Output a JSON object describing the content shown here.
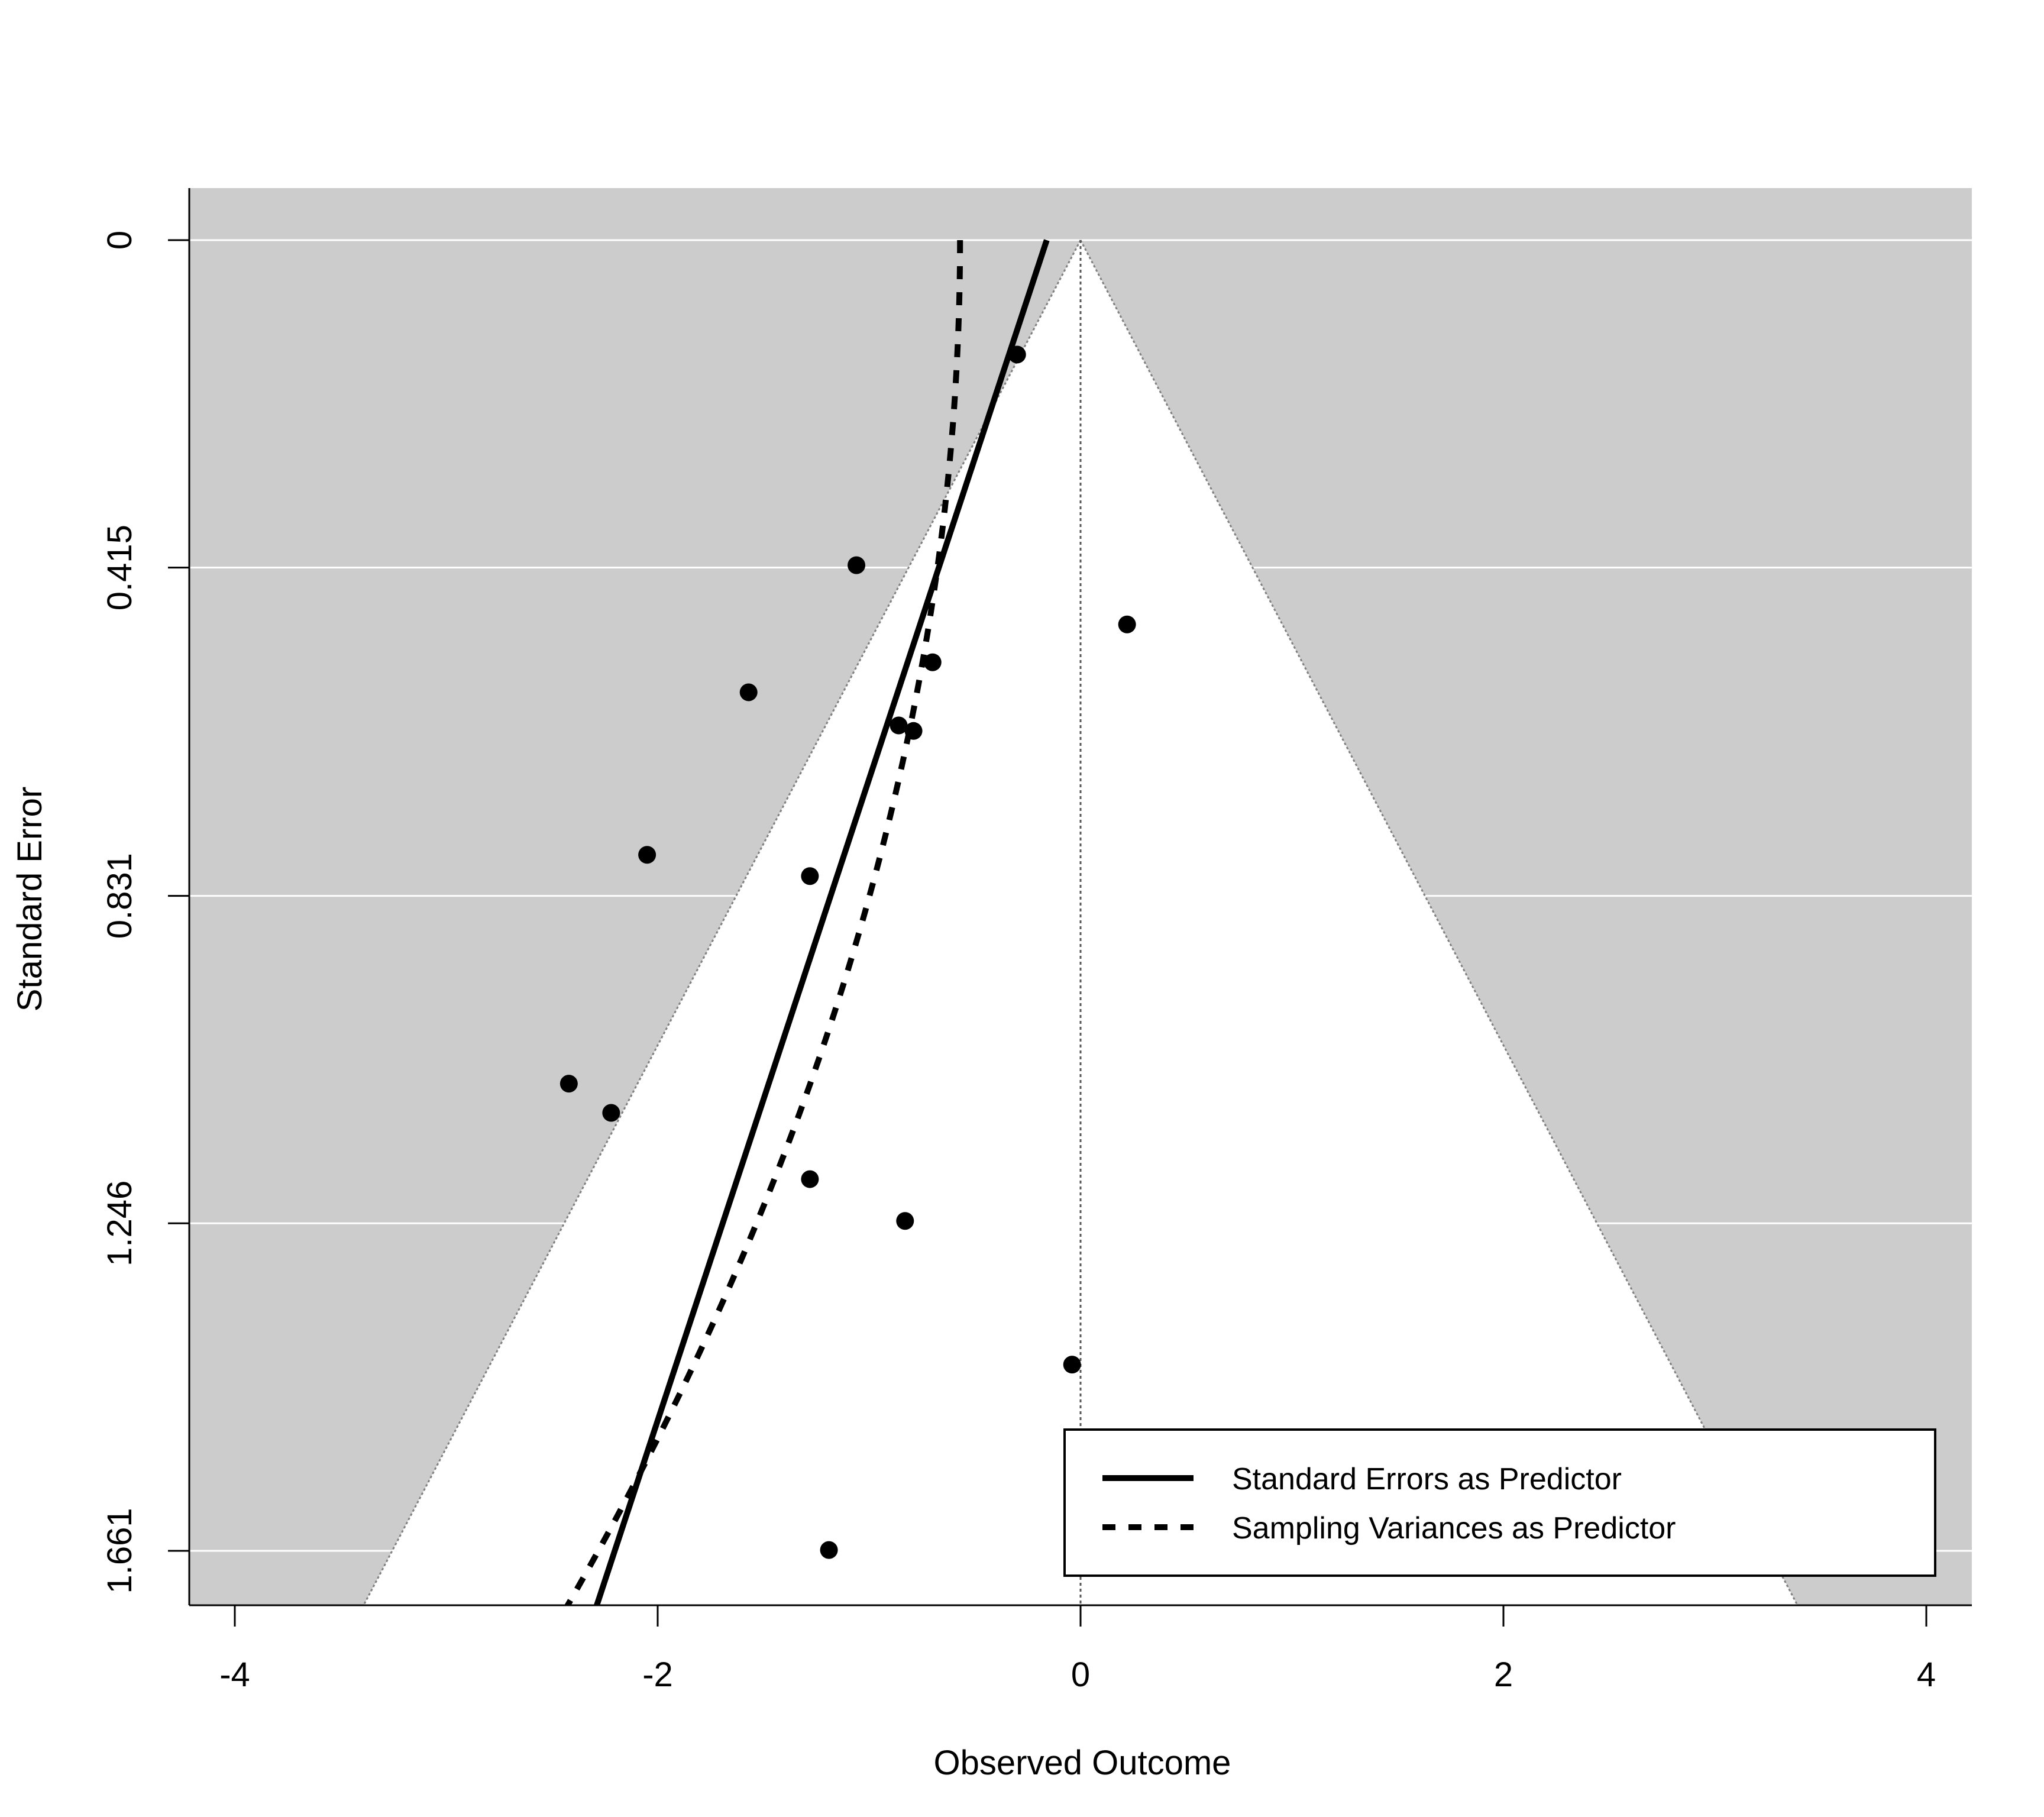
{
  "chart_data": {
    "type": "scatter",
    "subtype": "funnel-plot",
    "title": "",
    "xlabel": "Observed Outcome",
    "ylabel": "Standard Error",
    "xlim": [
      -4.22,
      4.22
    ],
    "ylim": [
      0,
      1.661
    ],
    "y_reversed": true,
    "x_ticks": [
      {
        "value": -4,
        "label": "-4"
      },
      {
        "value": -2,
        "label": "-2"
      },
      {
        "value": 0,
        "label": "0"
      },
      {
        "value": 2,
        "label": "2"
      },
      {
        "value": 4,
        "label": "4"
      }
    ],
    "y_ticks": [
      {
        "value": 0,
        "label": "0"
      },
      {
        "value": 0.415,
        "label": "0.415"
      },
      {
        "value": 0.831,
        "label": "0.831"
      },
      {
        "value": 1.246,
        "label": "1.246"
      },
      {
        "value": 1.661,
        "label": "1.661"
      }
    ],
    "grid": "horizontal",
    "funnel": {
      "center": 0,
      "z": 1.96,
      "inner_fill": "#ffffff",
      "outer_fill": "#cccccc",
      "boundary_color": "#808080"
    },
    "points": [
      {
        "x": -0.3,
        "y": 0.145
      },
      {
        "x": -1.06,
        "y": 0.412
      },
      {
        "x": 0.22,
        "y": 0.487
      },
      {
        "x": -0.7,
        "y": 0.535
      },
      {
        "x": -1.57,
        "y": 0.573
      },
      {
        "x": -0.86,
        "y": 0.615
      },
      {
        "x": -0.79,
        "y": 0.622
      },
      {
        "x": -2.05,
        "y": 0.779
      },
      {
        "x": -1.28,
        "y": 0.806
      },
      {
        "x": -2.42,
        "y": 1.069
      },
      {
        "x": -2.22,
        "y": 1.106
      },
      {
        "x": -1.28,
        "y": 1.19
      },
      {
        "x": -0.83,
        "y": 1.243
      },
      {
        "x": -0.04,
        "y": 1.425
      },
      {
        "x": -1.19,
        "y": 1.66
      }
    ],
    "series": [
      {
        "name": "Standard Errors as Predictor",
        "style": "solid",
        "intercept": -0.16,
        "slope_se": -1.23
      },
      {
        "name": "Sampling Variances as Predictor",
        "style": "dashed",
        "intercept": -0.57,
        "slope_var": -0.62
      }
    ],
    "legend": {
      "position": "bottom-right",
      "entries": [
        "Standard Errors as Predictor",
        "Sampling Variances as Predictor"
      ]
    }
  }
}
